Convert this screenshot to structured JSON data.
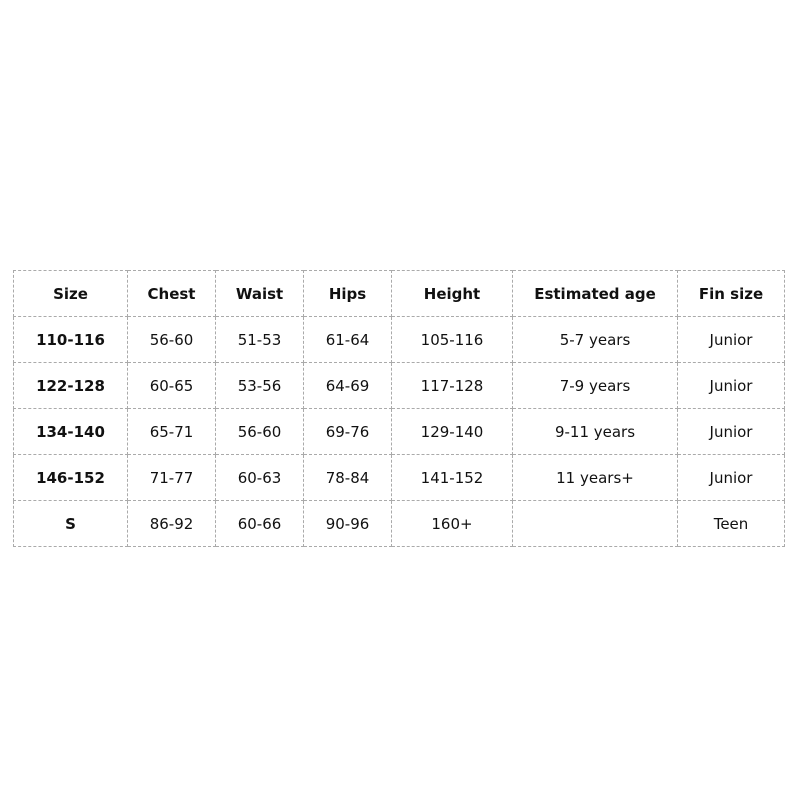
{
  "table": {
    "headers": [
      "Size",
      "Chest",
      "Waist",
      "Hips",
      "Height",
      "Estimated age",
      "Fin size"
    ],
    "rows": [
      [
        "110-116",
        "56-60",
        "51-53",
        "61-64",
        "105-116",
        "5-7 years",
        "Junior"
      ],
      [
        "122-128",
        "60-65",
        "53-56",
        "64-69",
        "117-128",
        "7-9 years",
        "Junior"
      ],
      [
        "134-140",
        "65-71",
        "56-60",
        "69-76",
        "129-140",
        "9-11 years",
        "Junior"
      ],
      [
        "146-152",
        "71-77",
        "60-63",
        "78-84",
        "141-152",
        "11 years+",
        "Junior"
      ],
      [
        "S",
        "86-92",
        "60-66",
        "90-96",
        "160+",
        "",
        "Teen"
      ]
    ]
  }
}
